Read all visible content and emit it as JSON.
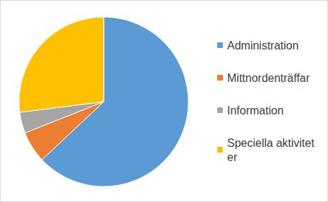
{
  "chart_data": {
    "type": "pie",
    "categories": [
      "Administration",
      "Mittnordenträffar",
      "Information",
      "Speciella aktiviteter"
    ],
    "values": [
      63,
      6,
      4,
      27
    ],
    "colors": [
      "#5b9bd5",
      "#ed7d31",
      "#a5a5a5",
      "#ffc000"
    ],
    "legend": "right"
  }
}
